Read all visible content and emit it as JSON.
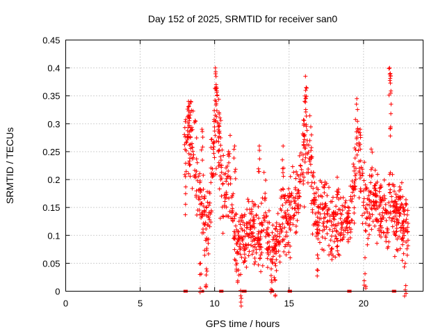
{
  "chart_data": {
    "type": "scatter",
    "title": "Day 152 of 2025, SRMTID for receiver san0",
    "xlabel": "GPS time / hours",
    "ylabel": "SRMTID / TECUs",
    "xlim": [
      0,
      24
    ],
    "ylim": [
      0,
      0.45
    ],
    "x_ticks": [
      0,
      5,
      10,
      15,
      20
    ],
    "x_tick_labels": [
      "0",
      "5",
      "10",
      "15",
      "20"
    ],
    "y_ticks": [
      0,
      0.05,
      0.1,
      0.15,
      0.2,
      0.25,
      0.3,
      0.35,
      0.4,
      0.45
    ],
    "y_tick_labels": [
      "0",
      "0.05",
      "0.1",
      "0.15",
      "0.2",
      "0.25",
      "0.3",
      "0.35",
      "0.4",
      "0.45"
    ],
    "grid": true,
    "marker": "plus",
    "color": "#ff0000",
    "zero_markers_x": [
      8.0,
      8.1,
      9.2,
      10.4,
      10.5,
      11.9,
      12.0,
      12.05,
      13.9,
      15.0,
      15.1,
      19.0,
      19.1,
      22.0,
      22.1
    ],
    "anchors": [
      [
        8.0,
        0.23
      ],
      [
        8.2,
        0.27
      ],
      [
        8.4,
        0.27
      ],
      [
        8.6,
        0.28
      ],
      [
        8.8,
        0.22
      ],
      [
        9.0,
        0.16
      ],
      [
        9.2,
        0.14
      ],
      [
        9.4,
        0.12
      ],
      [
        9.6,
        0.12
      ],
      [
        9.8,
        0.2
      ],
      [
        10.0,
        0.3
      ],
      [
        10.2,
        0.3
      ],
      [
        10.4,
        0.22
      ],
      [
        10.6,
        0.18
      ],
      [
        10.8,
        0.17
      ],
      [
        11.0,
        0.22
      ],
      [
        11.2,
        0.14
      ],
      [
        11.4,
        0.1
      ],
      [
        11.6,
        0.09
      ],
      [
        11.8,
        0.1
      ],
      [
        12.0,
        0.1
      ],
      [
        12.2,
        0.11
      ],
      [
        12.4,
        0.12
      ],
      [
        12.6,
        0.11
      ],
      [
        12.8,
        0.09
      ],
      [
        13.0,
        0.09
      ],
      [
        13.2,
        0.12
      ],
      [
        13.4,
        0.14
      ],
      [
        13.6,
        0.09
      ],
      [
        13.8,
        0.07
      ],
      [
        14.0,
        0.08
      ],
      [
        14.2,
        0.1
      ],
      [
        14.4,
        0.11
      ],
      [
        14.6,
        0.13
      ],
      [
        14.8,
        0.12
      ],
      [
        15.0,
        0.13
      ],
      [
        15.2,
        0.14
      ],
      [
        15.4,
        0.15
      ],
      [
        15.6,
        0.18
      ],
      [
        15.8,
        0.22
      ],
      [
        16.0,
        0.25
      ],
      [
        16.2,
        0.26
      ],
      [
        16.4,
        0.24
      ],
      [
        16.6,
        0.17
      ],
      [
        16.8,
        0.14
      ],
      [
        17.0,
        0.12
      ],
      [
        17.2,
        0.14
      ],
      [
        17.4,
        0.15
      ],
      [
        17.6,
        0.13
      ],
      [
        17.8,
        0.11
      ],
      [
        18.0,
        0.12
      ],
      [
        18.2,
        0.13
      ],
      [
        18.4,
        0.12
      ],
      [
        18.6,
        0.11
      ],
      [
        18.8,
        0.12
      ],
      [
        19.0,
        0.13
      ],
      [
        19.2,
        0.16
      ],
      [
        19.4,
        0.2
      ],
      [
        19.6,
        0.24
      ],
      [
        19.8,
        0.22
      ],
      [
        20.0,
        0.17
      ],
      [
        20.2,
        0.16
      ],
      [
        20.4,
        0.17
      ],
      [
        20.6,
        0.18
      ],
      [
        20.8,
        0.15
      ],
      [
        21.0,
        0.14
      ],
      [
        21.2,
        0.16
      ],
      [
        21.4,
        0.14
      ],
      [
        21.6,
        0.12
      ],
      [
        21.8,
        0.18
      ],
      [
        22.0,
        0.14
      ],
      [
        22.2,
        0.13
      ],
      [
        22.4,
        0.14
      ],
      [
        22.6,
        0.12
      ],
      [
        22.8,
        0.11
      ],
      [
        23.0,
        0.09
      ]
    ],
    "spikes": [
      [
        8.25,
        0.34
      ],
      [
        8.4,
        0.34
      ],
      [
        9.15,
        0.29
      ],
      [
        10.05,
        0.4
      ],
      [
        10.1,
        0.37
      ],
      [
        10.3,
        0.32
      ],
      [
        11.35,
        0.26
      ],
      [
        13.0,
        0.26
      ],
      [
        14.6,
        0.26
      ],
      [
        16.0,
        0.3
      ],
      [
        16.1,
        0.385
      ],
      [
        16.15,
        0.365
      ],
      [
        19.55,
        0.345
      ],
      [
        21.75,
        0.4
      ],
      [
        21.8,
        0.39
      ],
      [
        21.85,
        0.335
      ],
      [
        9.05,
        0.05
      ],
      [
        9.45,
        0.04
      ],
      [
        11.5,
        0.05
      ],
      [
        11.75,
        0.03
      ],
      [
        13.8,
        0.04
      ],
      [
        14.05,
        0.05
      ],
      [
        22.8,
        0.05
      ],
      [
        20.1,
        0.06
      ],
      [
        16.9,
        0.065
      ]
    ]
  }
}
